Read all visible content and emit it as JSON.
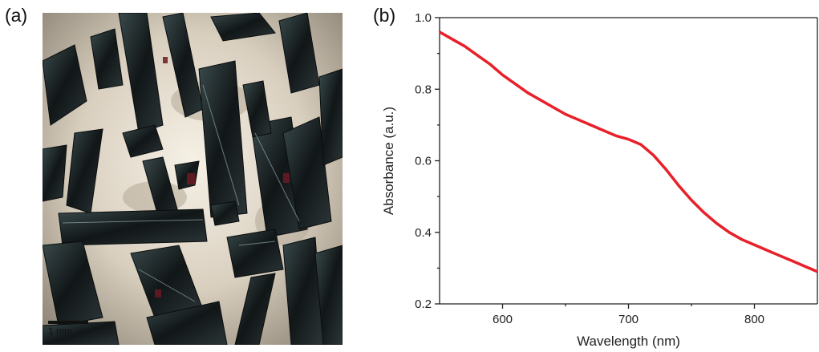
{
  "panels": {
    "a": {
      "label": "(a)",
      "scale_bar": "1 mm"
    },
    "b": {
      "label": "(b)"
    }
  },
  "chart_data": {
    "type": "line",
    "xlabel": "Wavelength (nm)",
    "ylabel": "Absorbance (a.u.)",
    "xlim": [
      550,
      850
    ],
    "ylim": [
      0.2,
      1.0
    ],
    "xticks": [
      600,
      700,
      800
    ],
    "xtick_labels": [
      "600",
      "700",
      "800"
    ],
    "yticks": [
      0.2,
      0.4,
      0.6,
      0.8,
      1.0
    ],
    "ytick_labels": [
      "0.2",
      "0.4",
      "0.6",
      "0.8",
      "1.0"
    ],
    "grid": false,
    "series": [
      {
        "color": "#e8202a",
        "x": [
          550,
          560,
          570,
          580,
          590,
          600,
          610,
          620,
          630,
          640,
          650,
          660,
          670,
          680,
          690,
          700,
          710,
          720,
          730,
          740,
          750,
          760,
          770,
          780,
          790,
          800,
          810,
          820,
          830,
          840,
          850
        ],
        "y": [
          0.96,
          0.94,
          0.92,
          0.895,
          0.87,
          0.84,
          0.815,
          0.79,
          0.77,
          0.75,
          0.73,
          0.715,
          0.7,
          0.685,
          0.67,
          0.66,
          0.645,
          0.615,
          0.575,
          0.53,
          0.49,
          0.455,
          0.425,
          0.4,
          0.38,
          0.365,
          0.35,
          0.335,
          0.32,
          0.305,
          0.29
        ]
      }
    ]
  }
}
